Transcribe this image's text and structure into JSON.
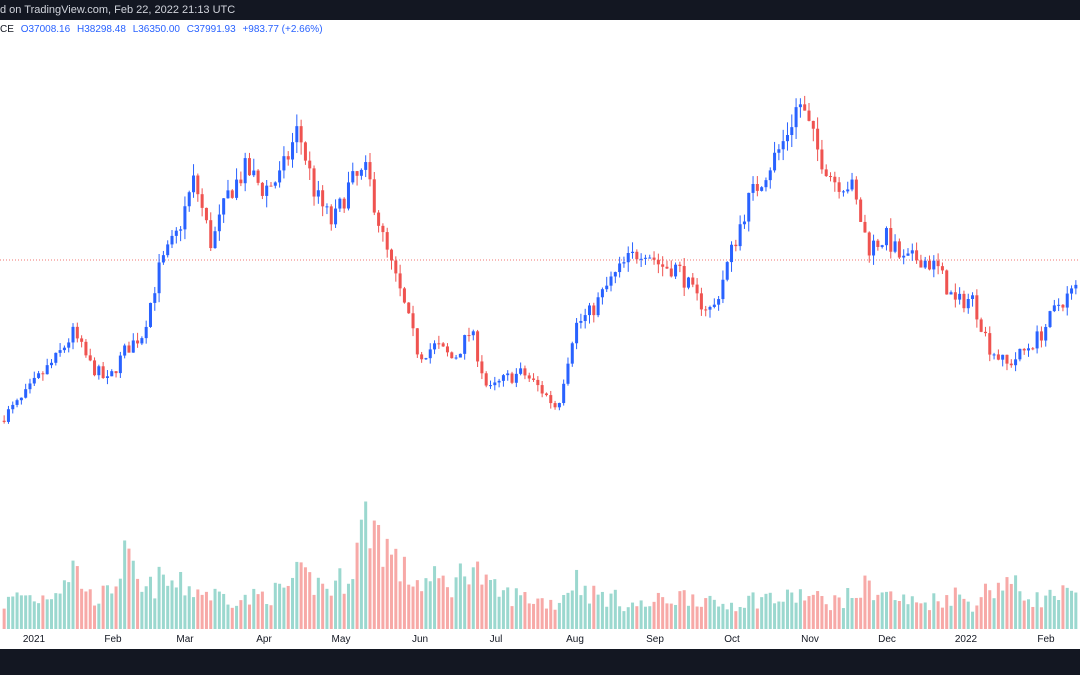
{
  "header": {
    "caption": "d on TradingView.com, Feb 22, 2022 21:13 UTC"
  },
  "legend": {
    "symbol_suffix": "CE",
    "open": "O37008.16",
    "high": "H38298.48",
    "low": "L36350.00",
    "close": "C37991.93",
    "change": "+983.77 (+2.66%)"
  },
  "colors": {
    "up": "#2962ff",
    "down": "#ef5350",
    "vol_up": "#9bd8cf",
    "vol_down": "#f7a9a7",
    "ref_line": "#ef5350",
    "axis_text": "#131722"
  },
  "chart_data": {
    "type": "candlestick",
    "title": "",
    "xlabel": "",
    "ylabel": "",
    "x_ticks": [
      "2021",
      "Feb",
      "Mar",
      "Apr",
      "May",
      "Jun",
      "Jul",
      "Aug",
      "Sep",
      "Oct",
      "Nov",
      "Dec",
      "2022",
      "Feb"
    ],
    "reference_line": "dotted horizontal line at current price",
    "series": [
      {
        "name": "",
        "kind": "close_path",
        "values": [
          28900,
          30800,
          33500,
          35800,
          38900,
          35000,
          33000,
          36800,
          38800,
          46800,
          50800,
          57400,
          49500,
          55800,
          58700,
          56200,
          57800,
          63500,
          55600,
          52000,
          56900,
          58300,
          49500,
          43200,
          36200,
          37400,
          35700,
          39200,
          31800,
          33400,
          34100,
          32200,
          29800,
          39700,
          41500,
          44900,
          47500,
          49200,
          47000,
          46700,
          43100,
          41500,
          48200,
          54600,
          58200,
          61500,
          66900,
          61100,
          57400,
          56700,
          49200,
          50500,
          47500,
          48000,
          46700,
          42500,
          43100,
          37200,
          35000,
          36700,
          38800,
          42400,
          44200
        ]
      },
      {
        "name": "",
        "kind": "volume_relative",
        "values": [
          0.22,
          0.3,
          0.26,
          0.35,
          0.55,
          0.28,
          0.3,
          0.62,
          0.3,
          0.42,
          0.38,
          0.35,
          0.3,
          0.28,
          0.25,
          0.3,
          0.32,
          0.45,
          0.4,
          0.35,
          0.5,
          1.0,
          0.75,
          0.5,
          0.4,
          0.42,
          0.38,
          0.6,
          0.35,
          0.3,
          0.28,
          0.25,
          0.22,
          0.45,
          0.3,
          0.28,
          0.22,
          0.2,
          0.25,
          0.28,
          0.3,
          0.2,
          0.22,
          0.25,
          0.28,
          0.25,
          0.3,
          0.26,
          0.24,
          0.28,
          0.38,
          0.3,
          0.25,
          0.22,
          0.26,
          0.3,
          0.22,
          0.35,
          0.42,
          0.3,
          0.25,
          0.3,
          0.28
        ]
      }
    ]
  }
}
